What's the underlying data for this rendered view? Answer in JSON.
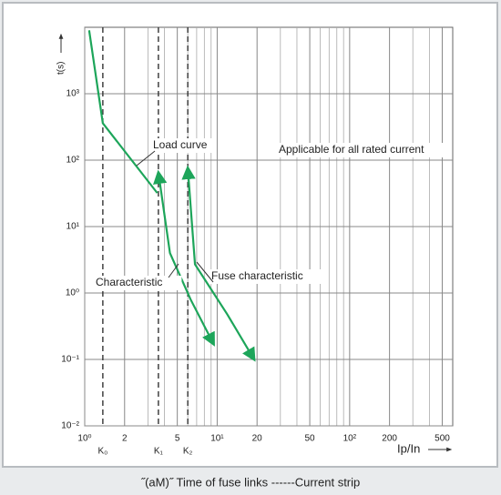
{
  "chart_data": {
    "type": "line",
    "xlabel": "Ip/In",
    "ylabel": "t(s)",
    "caption": "˝(aM)˝ Time of fuse links ------Current strip",
    "annotation": "Applicable for all rated current",
    "log_x": true,
    "log_y": true,
    "grid": true,
    "color": "#1da55a",
    "xlim": [
      1,
      600
    ],
    "ylim": [
      0.01,
      10000
    ],
    "xticks": [
      {
        "value": 1,
        "label": "10⁰"
      },
      2,
      5,
      {
        "value": 10,
        "label": "10¹"
      },
      20,
      50,
      {
        "value": 100,
        "label": "10²"
      },
      200,
      500
    ],
    "x_minor_grid": [
      3,
      4,
      6,
      7,
      8,
      9,
      30,
      40,
      60,
      70,
      80,
      90,
      300,
      400
    ],
    "yticks": [
      {
        "value": 0.01,
        "label": "10⁻²"
      },
      {
        "value": 0.1,
        "label": "10⁻¹"
      },
      {
        "value": 1,
        "label": "10⁰"
      },
      {
        "value": 10,
        "label": "10¹"
      },
      {
        "value": 100,
        "label": "10²"
      },
      {
        "value": 1000,
        "label": "10³"
      }
    ],
    "markers": [
      {
        "label": "K₀",
        "x": 1.37
      },
      {
        "label": "K₁",
        "x": 3.6
      },
      {
        "label": "K₂",
        "x": 6.0
      }
    ],
    "series": [
      {
        "name": "Load curve",
        "x": [
          1.08,
          1.37,
          3.53
        ],
        "y": [
          9000,
          360,
          32
        ]
      },
      {
        "name": "Characteristic",
        "x": [
          3.6,
          4.4,
          6.3,
          9.4
        ],
        "y": [
          65,
          4,
          0.8,
          0.17
        ]
      },
      {
        "name": "Fuse characteristic",
        "x": [
          6.0,
          6.8,
          11.9,
          19
        ],
        "y": [
          76,
          2.7,
          0.48,
          0.1
        ]
      }
    ]
  }
}
